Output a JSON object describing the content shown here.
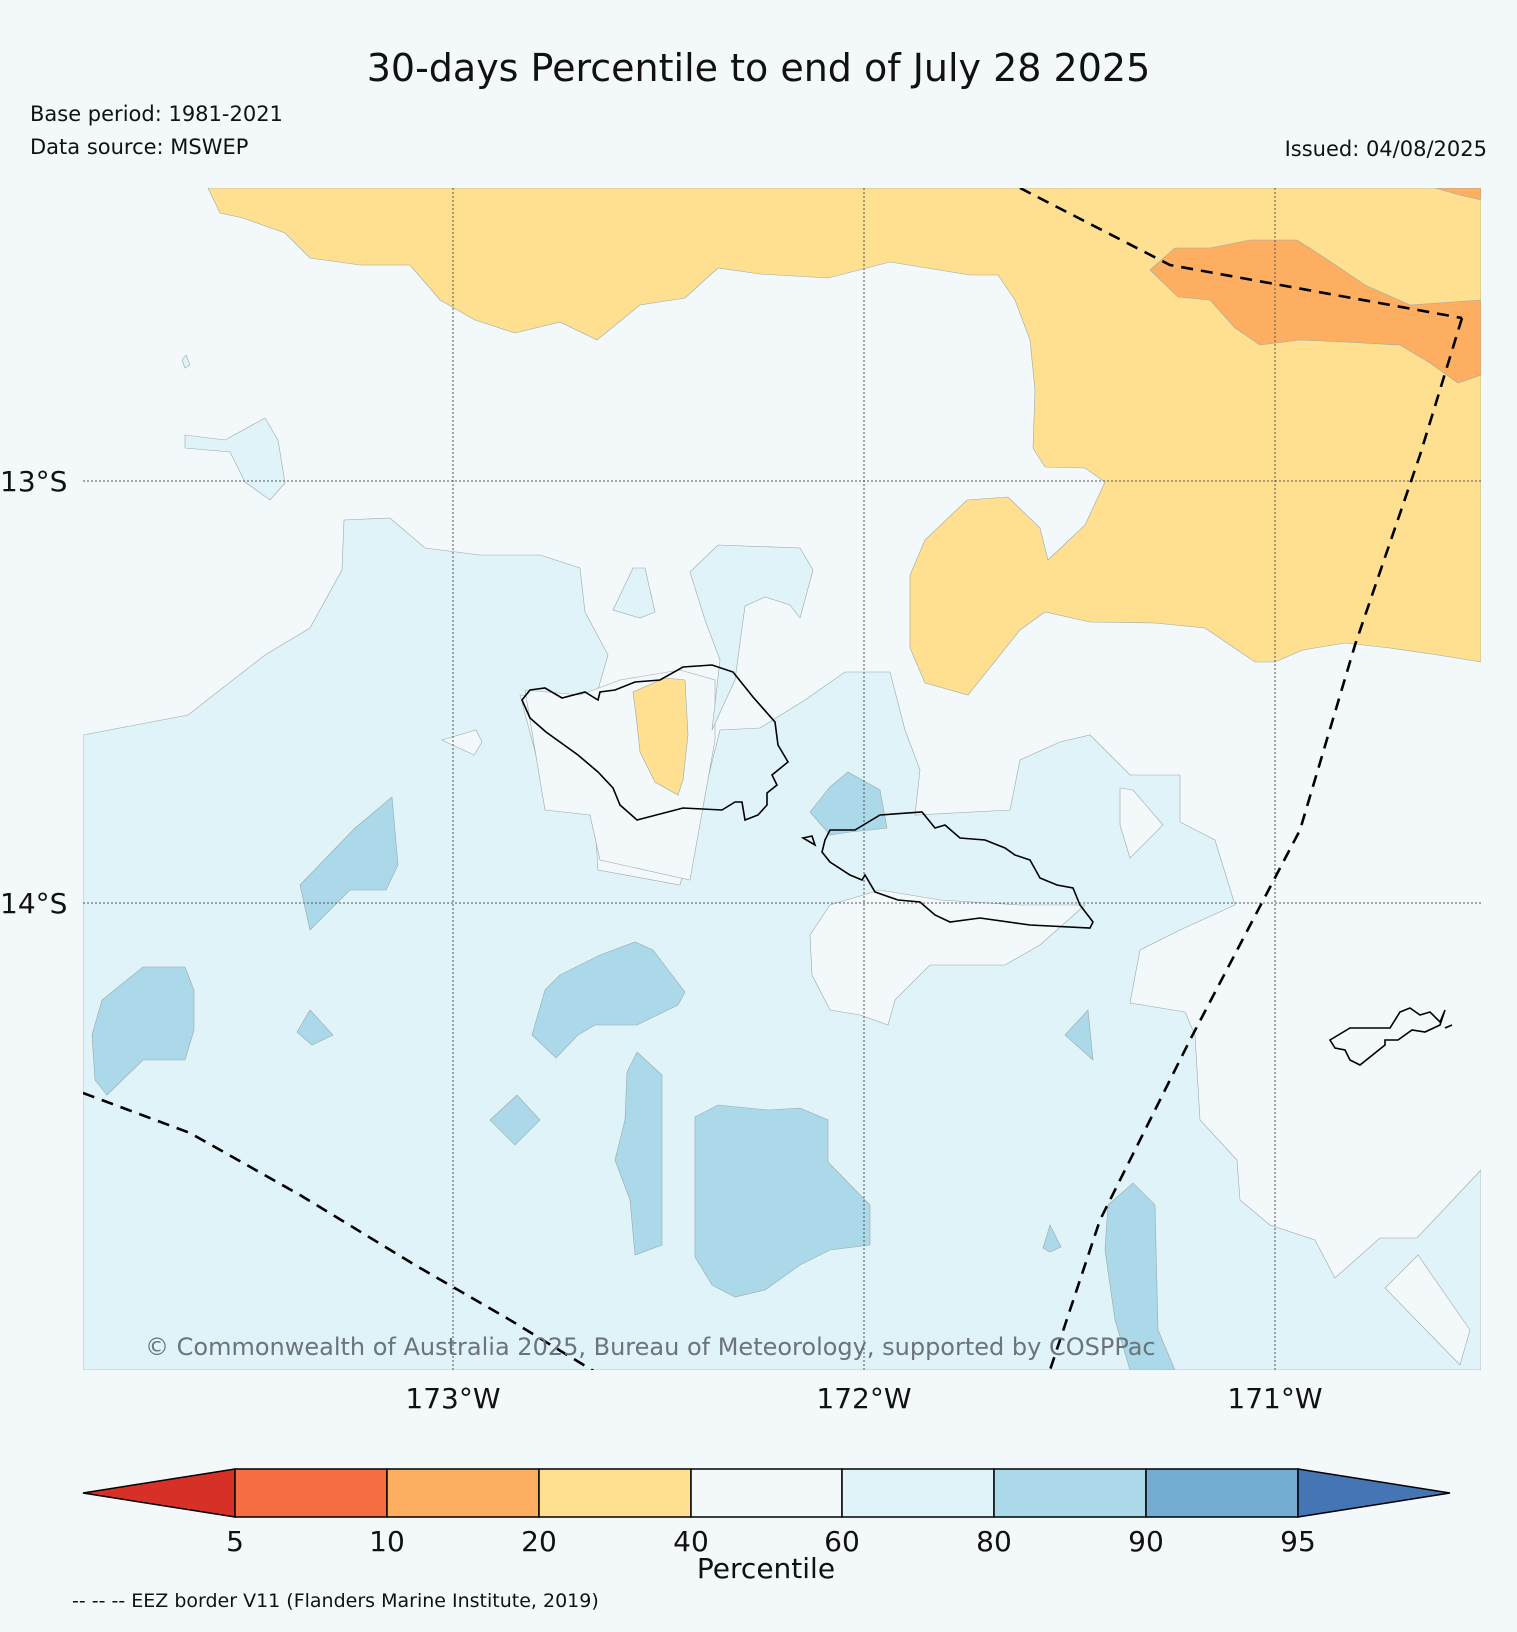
{
  "title": "30-days Percentile to end of July 28 2025",
  "base_period": "Base period: 1981-2021",
  "data_source": "Data source: MSWEP",
  "issued": "Issued: 04/08/2025",
  "copyright": "© Commonwealth of Australia 2025, Bureau of Meteorology, supported by COSPPac",
  "footnote": "-- -- -- EEZ border V11 (Flanders Marine Institute, 2019)",
  "latitude_labels": [
    "13°S",
    "14°S"
  ],
  "longitude_labels": [
    "173°W",
    "172°W",
    "171°W"
  ],
  "colorbar": {
    "title": "Percentile",
    "tick_labels": [
      "5",
      "10",
      "20",
      "40",
      "60",
      "80",
      "90",
      "95"
    ],
    "colors": {
      "below_5": "#d73027",
      "5_10": "#f46d43",
      "10_20": "#fdae61",
      "20_40": "#fee090",
      "40_60": "#f3f8fb",
      "60_80": "#e0f3f8",
      "80_90": "#abd9e9",
      "90_95": "#74add1",
      "above_95": "#4575b4"
    }
  },
  "legend_colors": {
    "background": "#f3f8fb",
    "gridline": "#555555",
    "coastline": "#000000",
    "eez_border": "#000000"
  }
}
